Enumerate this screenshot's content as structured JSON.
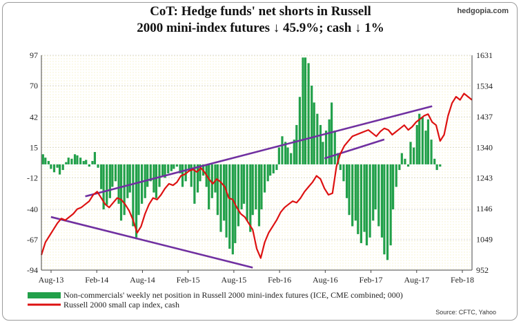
{
  "brand": "hedgopia.com",
  "chart_data": {
    "type": "bar+line",
    "title_line1": "CoT: Hedge funds' net shorts in Russell",
    "title_line2": "2000 mini-index futures ↓ 45.9%; cash ↓ 1%",
    "source": "Source: CFTC, Yahoo",
    "left_axis": {
      "min": -94,
      "max": 97,
      "ticks": [
        "97",
        "70",
        "42",
        "15",
        "-12",
        "-40",
        "-67",
        "-94"
      ],
      "tick_values": [
        97,
        70,
        42,
        15,
        -12,
        -40,
        -67,
        -94
      ]
    },
    "right_axis": {
      "min": 952,
      "max": 1631,
      "ticks": [
        "1631",
        "1534",
        "1437",
        "1340",
        "1243",
        "1146",
        "1049",
        "952"
      ],
      "tick_values": [
        1631,
        1534,
        1437,
        1340,
        1243,
        1146,
        1049,
        952
      ]
    },
    "x_ticks": [
      "Aug-13",
      "Feb-14",
      "Aug-14",
      "Feb-15",
      "Aug-15",
      "Feb-16",
      "Aug-16",
      "Feb-17",
      "Aug-17",
      "Feb-18"
    ],
    "x_range": [
      0,
      54
    ],
    "legend": [
      {
        "label": "Non-commercials' weekly net position in Russell 2000 mini-index futures (ICE, CME combined; 000)",
        "color": "#22a04a"
      },
      {
        "label": "Russell 2000 small cap index, cash",
        "color": "#dd1111"
      }
    ],
    "colors": {
      "bars": "#22a04a",
      "line": "#dd1111",
      "trendline": "#7030a0",
      "grid": "#d8d8d8"
    },
    "series": [
      {
        "name": "Non-commercials' weekly net position in Russell 2000 mini-index futures (ICE, CME combined; 000)",
        "axis": "left",
        "type": "bar",
        "points": [
          [
            0.2,
            9
          ],
          [
            0.5,
            6
          ],
          [
            0.9,
            3
          ],
          [
            1.2,
            -4
          ],
          [
            1.6,
            -7
          ],
          [
            2.0,
            -3
          ],
          [
            2.3,
            -9
          ],
          [
            2.7,
            -5
          ],
          [
            3.1,
            2
          ],
          [
            3.4,
            6
          ],
          [
            3.8,
            5
          ],
          [
            4.2,
            9
          ],
          [
            4.5,
            8
          ],
          [
            4.9,
            6
          ],
          [
            5.3,
            3
          ],
          [
            5.6,
            4
          ],
          [
            6.0,
            -2
          ],
          [
            6.4,
            3
          ],
          [
            6.7,
            11
          ],
          [
            7.1,
            -3
          ],
          [
            7.5,
            -22
          ],
          [
            7.8,
            -40
          ],
          [
            8.2,
            -36
          ],
          [
            8.6,
            -30
          ],
          [
            8.9,
            -20
          ],
          [
            9.3,
            -15
          ],
          [
            9.7,
            -35
          ],
          [
            10.0,
            -50
          ],
          [
            10.4,
            -45
          ],
          [
            10.8,
            -30
          ],
          [
            11.1,
            -25
          ],
          [
            11.5,
            -55
          ],
          [
            11.9,
            -65
          ],
          [
            12.2,
            -45
          ],
          [
            12.6,
            -35
          ],
          [
            13.0,
            -30
          ],
          [
            13.3,
            -20
          ],
          [
            13.7,
            -15
          ],
          [
            14.1,
            -25
          ],
          [
            14.4,
            -30
          ],
          [
            14.8,
            -20
          ],
          [
            15.2,
            -10
          ],
          [
            15.5,
            -12
          ],
          [
            15.9,
            -8
          ],
          [
            16.3,
            -6
          ],
          [
            16.6,
            -4
          ],
          [
            17.0,
            -2
          ],
          [
            17.4,
            -8
          ],
          [
            17.7,
            -20
          ],
          [
            18.1,
            -15
          ],
          [
            18.5,
            -5
          ],
          [
            18.8,
            -20
          ],
          [
            19.2,
            -35
          ],
          [
            19.6,
            -25
          ],
          [
            19.9,
            -15
          ],
          [
            20.3,
            -10
          ],
          [
            20.7,
            -20
          ],
          [
            21.0,
            -40
          ],
          [
            21.4,
            -30
          ],
          [
            21.8,
            -25
          ],
          [
            22.1,
            -45
          ],
          [
            22.5,
            -60
          ],
          [
            22.9,
            -50
          ],
          [
            23.2,
            -65
          ],
          [
            23.6,
            -75
          ],
          [
            24.0,
            -80
          ],
          [
            24.3,
            -70
          ],
          [
            24.7,
            -55
          ],
          [
            25.1,
            -40
          ],
          [
            25.4,
            -35
          ],
          [
            25.8,
            -50
          ],
          [
            26.2,
            -60
          ],
          [
            26.5,
            -45
          ],
          [
            26.9,
            -40
          ],
          [
            27.3,
            -55
          ],
          [
            27.6,
            -40
          ],
          [
            28.0,
            -25
          ],
          [
            28.4,
            -15
          ],
          [
            28.7,
            -10
          ],
          [
            29.1,
            -8
          ],
          [
            29.5,
            -5
          ],
          [
            29.8,
            15
          ],
          [
            30.2,
            25
          ],
          [
            30.6,
            20
          ],
          [
            30.9,
            15
          ],
          [
            31.3,
            10
          ],
          [
            31.7,
            22
          ],
          [
            32.0,
            35
          ],
          [
            32.4,
            60
          ],
          [
            32.8,
            95
          ],
          [
            33.1,
            95
          ],
          [
            33.5,
            90
          ],
          [
            33.9,
            70
          ],
          [
            34.2,
            55
          ],
          [
            34.6,
            45
          ],
          [
            35.0,
            35
          ],
          [
            35.3,
            20
          ],
          [
            35.7,
            30
          ],
          [
            36.1,
            40
          ],
          [
            36.4,
            55
          ],
          [
            36.8,
            30
          ],
          [
            37.2,
            10
          ],
          [
            37.5,
            -5
          ],
          [
            37.9,
            -15
          ],
          [
            38.3,
            -30
          ],
          [
            38.6,
            -45
          ],
          [
            39.0,
            -55
          ],
          [
            39.4,
            -50
          ],
          [
            39.7,
            -62
          ],
          [
            40.1,
            -70
          ],
          [
            40.5,
            -60
          ],
          [
            40.8,
            -72
          ],
          [
            41.2,
            -65
          ],
          [
            41.6,
            -50
          ],
          [
            41.9,
            -40
          ],
          [
            42.3,
            -55
          ],
          [
            42.7,
            -65
          ],
          [
            43.0,
            -80
          ],
          [
            43.4,
            -85
          ],
          [
            43.8,
            -72
          ],
          [
            44.1,
            -40
          ],
          [
            44.5,
            -20
          ],
          [
            44.9,
            -5
          ],
          [
            45.2,
            10
          ],
          [
            45.6,
            5
          ],
          [
            46.0,
            -2
          ],
          [
            46.3,
            20
          ],
          [
            46.7,
            15
          ],
          [
            47.1,
            35
          ],
          [
            47.4,
            45
          ],
          [
            47.8,
            42
          ],
          [
            48.2,
            30
          ],
          [
            48.5,
            40
          ],
          [
            48.9,
            22
          ],
          [
            49.3,
            5
          ],
          [
            49.6,
            -5
          ],
          [
            50.0,
            -2
          ]
        ]
      },
      {
        "name": "Russell 2000 small cap index, cash",
        "axis": "right",
        "type": "line",
        "points": [
          [
            0,
            1000
          ],
          [
            0.5,
            1040
          ],
          [
            1.0,
            1060
          ],
          [
            1.5,
            1080
          ],
          [
            2.0,
            1100
          ],
          [
            2.5,
            1115
          ],
          [
            3.0,
            1110
          ],
          [
            3.5,
            1120
          ],
          [
            4.0,
            1130
          ],
          [
            4.5,
            1145
          ],
          [
            5.0,
            1150
          ],
          [
            5.5,
            1160
          ],
          [
            6.0,
            1170
          ],
          [
            6.5,
            1190
          ],
          [
            7.0,
            1200
          ],
          [
            7.5,
            1180
          ],
          [
            8.0,
            1160
          ],
          [
            8.5,
            1150
          ],
          [
            9.0,
            1165
          ],
          [
            9.5,
            1180
          ],
          [
            10.0,
            1175
          ],
          [
            10.5,
            1160
          ],
          [
            11.0,
            1140
          ],
          [
            11.5,
            1110
          ],
          [
            12.0,
            1070
          ],
          [
            12.5,
            1090
          ],
          [
            13.0,
            1130
          ],
          [
            13.5,
            1160
          ],
          [
            14.0,
            1180
          ],
          [
            14.5,
            1175
          ],
          [
            15.0,
            1190
          ],
          [
            15.5,
            1210
          ],
          [
            16.0,
            1225
          ],
          [
            16.5,
            1220
          ],
          [
            17.0,
            1230
          ],
          [
            17.5,
            1250
          ],
          [
            18.0,
            1255
          ],
          [
            18.5,
            1265
          ],
          [
            19.0,
            1270
          ],
          [
            19.5,
            1262
          ],
          [
            20.0,
            1275
          ],
          [
            20.5,
            1260
          ],
          [
            21.0,
            1240
          ],
          [
            21.5,
            1225
          ],
          [
            22.0,
            1240
          ],
          [
            22.5,
            1230
          ],
          [
            23.0,
            1215
          ],
          [
            23.5,
            1180
          ],
          [
            24.0,
            1175
          ],
          [
            24.5,
            1150
          ],
          [
            25.0,
            1130
          ],
          [
            25.5,
            1120
          ],
          [
            26.0,
            1100
          ],
          [
            26.5,
            1080
          ],
          [
            27.0,
            1020
          ],
          [
            27.5,
            990
          ],
          [
            28.0,
            1040
          ],
          [
            28.5,
            1070
          ],
          [
            29.0,
            1090
          ],
          [
            29.5,
            1110
          ],
          [
            30.0,
            1135
          ],
          [
            30.5,
            1150
          ],
          [
            31.0,
            1160
          ],
          [
            31.5,
            1170
          ],
          [
            32.0,
            1165
          ],
          [
            32.5,
            1180
          ],
          [
            33.0,
            1200
          ],
          [
            33.5,
            1215
          ],
          [
            34.0,
            1230
          ],
          [
            34.5,
            1250
          ],
          [
            35.0,
            1240
          ],
          [
            35.5,
            1210
          ],
          [
            36.0,
            1190
          ],
          [
            36.5,
            1195
          ],
          [
            37.0,
            1280
          ],
          [
            37.5,
            1320
          ],
          [
            38.0,
            1345
          ],
          [
            38.5,
            1360
          ],
          [
            39.0,
            1375
          ],
          [
            39.5,
            1380
          ],
          [
            40.0,
            1385
          ],
          [
            40.5,
            1390
          ],
          [
            41.0,
            1395
          ],
          [
            41.5,
            1385
          ],
          [
            42.0,
            1375
          ],
          [
            42.5,
            1390
          ],
          [
            43.0,
            1400
          ],
          [
            43.5,
            1395
          ],
          [
            44.0,
            1380
          ],
          [
            44.5,
            1390
          ],
          [
            45.0,
            1400
          ],
          [
            45.5,
            1410
          ],
          [
            46.0,
            1395
          ],
          [
            46.5,
            1405
          ],
          [
            47.0,
            1420
          ],
          [
            47.5,
            1430
          ],
          [
            48.0,
            1440
          ],
          [
            48.5,
            1445
          ],
          [
            49.0,
            1420
          ],
          [
            49.5,
            1410
          ],
          [
            50.0,
            1360
          ],
          [
            50.5,
            1380
          ],
          [
            51.0,
            1440
          ],
          [
            51.5,
            1480
          ],
          [
            52.0,
            1500
          ],
          [
            52.5,
            1490
          ],
          [
            53.0,
            1510
          ],
          [
            53.5,
            1500
          ],
          [
            54.0,
            1490
          ]
        ]
      }
    ],
    "trendlines": [
      {
        "axis": "right",
        "from": [
          1.2,
          1120
        ],
        "to": [
          26.5,
          960
        ]
      },
      {
        "axis": "right",
        "from": [
          5.5,
          1185
        ],
        "to": [
          49.0,
          1470
        ]
      },
      {
        "axis": "right",
        "from": [
          35.5,
          1305
        ],
        "to": [
          43.0,
          1365
        ]
      }
    ]
  }
}
